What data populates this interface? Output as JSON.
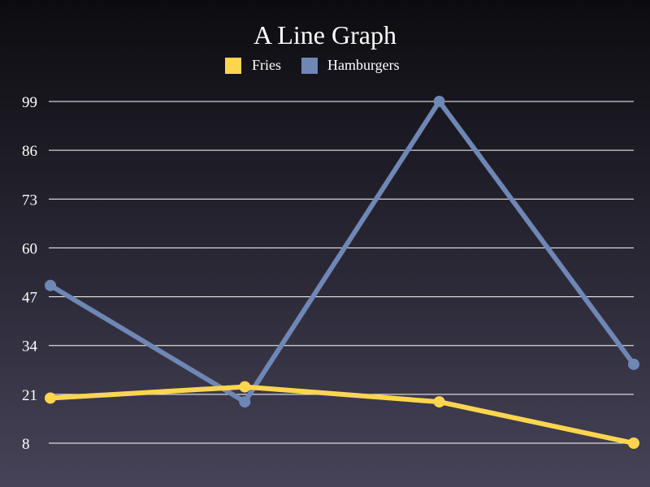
{
  "chart_data": {
    "type": "line",
    "title": "A Line Graph",
    "x": [
      1,
      2,
      3,
      4
    ],
    "yticks": [
      8,
      21,
      34,
      47,
      60,
      73,
      86,
      99
    ],
    "ylim": [
      8,
      99
    ],
    "grid": true,
    "legend_position": "top",
    "series": [
      {
        "name": "Fries",
        "color": "#ffd54f",
        "values": [
          20,
          23,
          19,
          8
        ]
      },
      {
        "name": "Hamburgers",
        "color": "#6f87b5",
        "values": [
          50,
          19,
          99,
          29
        ]
      }
    ]
  }
}
